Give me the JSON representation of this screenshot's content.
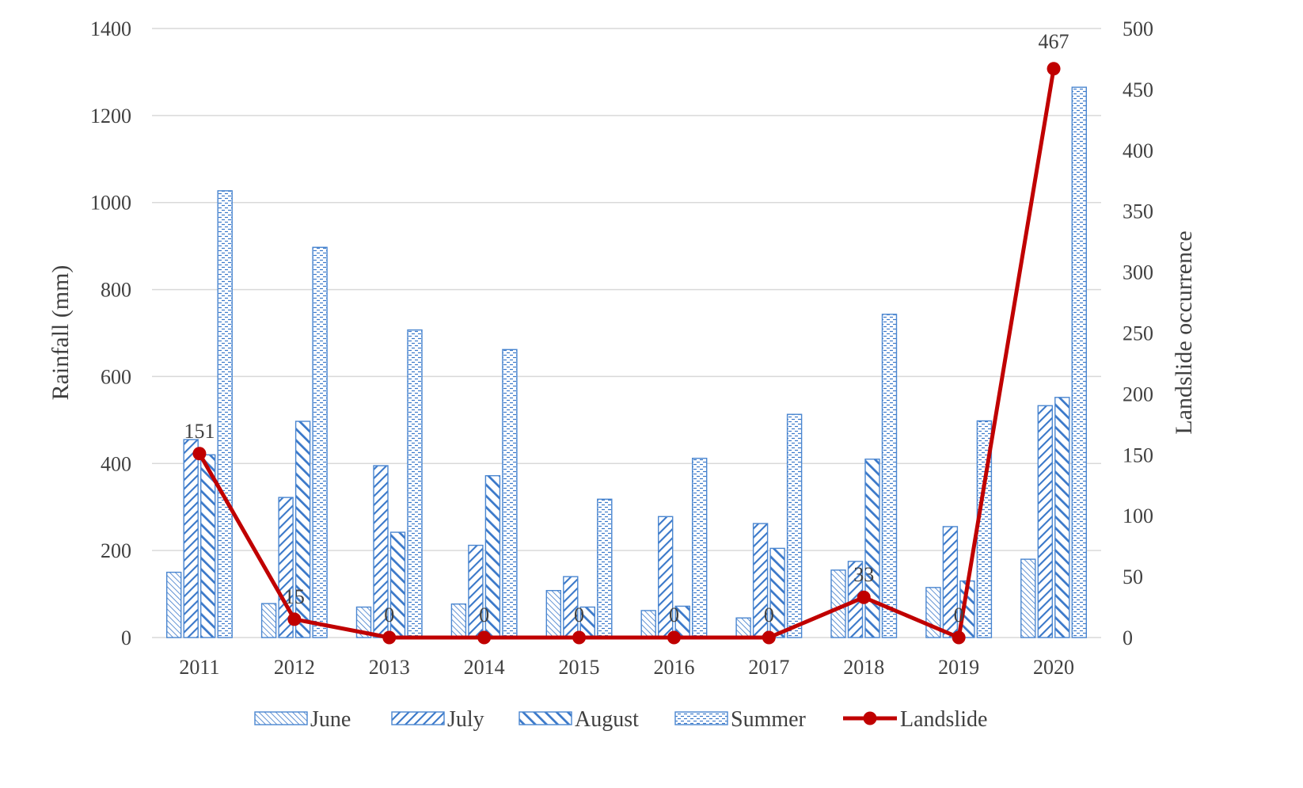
{
  "chart_data": {
    "type": "bar",
    "categories": [
      "2011",
      "2012",
      "2013",
      "2014",
      "2015",
      "2016",
      "2017",
      "2018",
      "2019",
      "2020"
    ],
    "series": [
      {
        "name": "June",
        "axis": "left",
        "pattern": "june",
        "values": [
          150,
          78,
          70,
          77,
          108,
          62,
          45,
          155,
          115,
          180
        ]
      },
      {
        "name": "July",
        "axis": "left",
        "pattern": "july",
        "values": [
          455,
          322,
          395,
          212,
          140,
          278,
          262,
          175,
          255,
          533
        ]
      },
      {
        "name": "August",
        "axis": "left",
        "pattern": "august",
        "values": [
          420,
          497,
          242,
          372,
          70,
          72,
          205,
          410,
          130,
          552
        ]
      },
      {
        "name": "Summer",
        "axis": "left",
        "pattern": "summer",
        "values": [
          1027,
          897,
          707,
          662,
          318,
          412,
          513,
          743,
          498,
          1265
        ]
      },
      {
        "name": "Landslide",
        "axis": "right",
        "type": "line",
        "values": [
          151,
          15,
          0,
          0,
          0,
          0,
          0,
          33,
          0,
          467
        ]
      }
    ],
    "data_labels": [
      "151",
      "15",
      "0",
      "0",
      "0",
      "0",
      "0",
      "33",
      "0",
      "467"
    ],
    "ylabel": "Rainfall (mm)",
    "y2label": "Landslide occurrence",
    "ylim": [
      0,
      1400
    ],
    "y2lim": [
      0,
      500
    ],
    "yticks": [
      "0",
      "200",
      "400",
      "600",
      "800",
      "1000",
      "1200",
      "1400"
    ],
    "y2ticks": [
      "0",
      "50",
      "100",
      "150",
      "200",
      "250",
      "300",
      "350",
      "400",
      "450",
      "500"
    ],
    "grid": true,
    "legend_position": "bottom",
    "colors": {
      "bar_stroke": "#4a86d0",
      "bar_pattern": "#3a78c9",
      "line": "#c00000",
      "grid": "#d9d9d9",
      "text": "#404040"
    }
  }
}
